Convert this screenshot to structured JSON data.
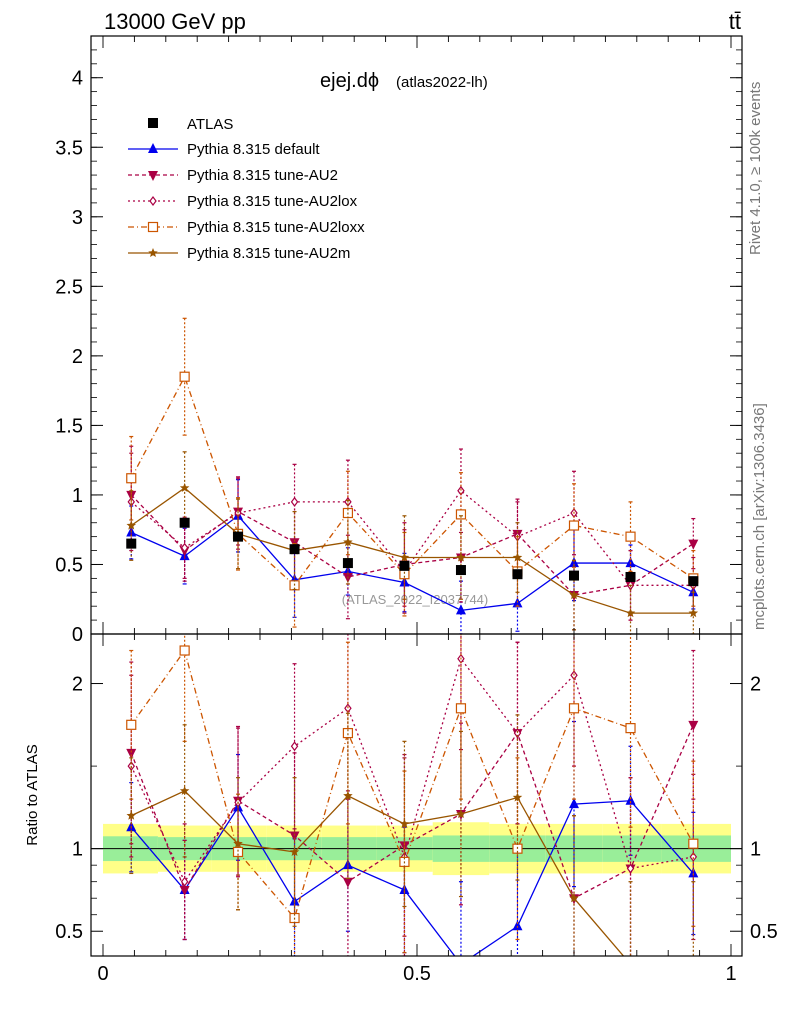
{
  "header": {
    "left": "13000 GeV pp",
    "right": "tt̄"
  },
  "side_labels": {
    "top": "Rivet 4.1.0, ≥ 100k events",
    "bottom": "mcplots.cern.ch [arXiv:1306.3436]"
  },
  "chart_data": {
    "type": "line",
    "title": "ejej.dϕ",
    "subtitle": "(atlas2022-lh)",
    "watermark": "(ATLAS_2022_I2037744)",
    "x": [
      0.045,
      0.13,
      0.215,
      0.305,
      0.39,
      0.48,
      0.57,
      0.66,
      0.75,
      0.84,
      0.94
    ],
    "xlim": [
      0,
      1
    ],
    "x_ticks": [
      "0",
      "0.5",
      "1"
    ],
    "x_tick_values": [
      0,
      0.5,
      1
    ],
    "main": {
      "ylim": [
        0,
        4.3
      ],
      "y_ticks": [
        "0",
        "0.5",
        "1",
        "1.5",
        "2",
        "2.5",
        "3",
        "3.5",
        "4"
      ],
      "y_tick_values": [
        0,
        0.5,
        1,
        1.5,
        2,
        2.5,
        3,
        3.5,
        4
      ]
    },
    "ratio": {
      "ylabel": "Ratio to ATLAS",
      "ylim": [
        0.35,
        2.3
      ],
      "y_ticks": [
        "0.5",
        "1",
        "2"
      ],
      "y_tick_values": [
        0.5,
        1,
        2
      ]
    },
    "data": {
      "name": "ATLAS",
      "values": [
        0.65,
        0.8,
        0.7,
        0.61,
        0.51,
        0.49,
        0.46,
        0.43,
        0.42,
        0.41,
        0.38
      ],
      "band_inner": [
        0.075,
        0.07,
        0.07,
        0.07,
        0.07,
        0.07,
        0.08,
        0.08,
        0.08,
        0.08,
        0.08
      ],
      "band_outer": [
        0.15,
        0.14,
        0.14,
        0.14,
        0.14,
        0.14,
        0.16,
        0.15,
        0.15,
        0.15,
        0.15
      ]
    },
    "series": [
      {
        "name": "Pythia 8.315 default",
        "color": "#0000ee",
        "dash": "",
        "marker": "triangle-up",
        "values": [
          0.73,
          0.56,
          0.85,
          0.39,
          0.45,
          0.37,
          0.17,
          0.22,
          0.51,
          0.51,
          0.3
        ],
        "errors": [
          0.19,
          0.2,
          0.26,
          0.27,
          0.17,
          0.21,
          0.21,
          0.2,
          0.27,
          0.13,
          0.12
        ],
        "ratio": [
          1.13,
          0.75,
          1.25,
          0.68,
          0.9,
          0.75,
          0.3,
          0.53,
          1.27,
          1.29,
          0.85
        ],
        "ratio_err": [
          0.27,
          0.3,
          0.32,
          0.38,
          0.4,
          0.38,
          0.5,
          0.45,
          0.5,
          0.33,
          0.37
        ]
      },
      {
        "name": "Pythia 8.315 tune-AU2",
        "color": "#aa0044",
        "dash": "4,3",
        "marker": "triangle-down",
        "values": [
          1.0,
          0.6,
          0.88,
          0.66,
          0.41,
          0.5,
          0.55,
          0.72,
          0.28,
          0.35,
          0.65
        ],
        "errors": [
          0.35,
          0.22,
          0.24,
          0.3,
          0.3,
          0.3,
          0.32,
          0.25,
          0.25,
          0.25,
          0.18
        ],
        "ratio": [
          1.58,
          0.75,
          1.29,
          1.08,
          0.8,
          1.02,
          1.21,
          1.7,
          0.7,
          0.88,
          1.75
        ],
        "ratio_err": [
          0.55,
          0.3,
          0.45,
          0.5,
          0.5,
          0.55,
          0.55,
          0.55,
          0.5,
          0.55,
          0.45
        ]
      },
      {
        "name": "Pythia 8.315 tune-AU2lox",
        "color": "#aa0044",
        "dash": "2,3",
        "marker": "diamond-open",
        "values": [
          0.95,
          0.62,
          0.87,
          0.95,
          0.95,
          0.45,
          1.03,
          0.7,
          0.87,
          0.35,
          0.35
        ],
        "errors": [
          0.35,
          0.22,
          0.26,
          0.27,
          0.3,
          0.3,
          0.3,
          0.25,
          0.3,
          0.25,
          0.2
        ],
        "ratio": [
          1.5,
          0.8,
          1.28,
          1.62,
          1.85,
          0.95,
          2.15,
          1.7,
          2.05,
          0.88,
          0.95
        ],
        "ratio_err": [
          0.55,
          0.35,
          0.45,
          0.5,
          0.5,
          0.6,
          0.55,
          0.55,
          0.55,
          0.55,
          0.5
        ]
      },
      {
        "name": "Pythia 8.315 tune-AU2loxx",
        "color": "#cc5500",
        "dash": "6,3,1,3",
        "marker": "square-open",
        "values": [
          1.12,
          1.85,
          0.72,
          0.35,
          0.87,
          0.43,
          0.86,
          0.45,
          0.78,
          0.7,
          0.4
        ],
        "errors": [
          0.3,
          0.42,
          0.26,
          0.3,
          0.3,
          0.3,
          0.3,
          0.25,
          0.3,
          0.25,
          0.2
        ],
        "ratio": [
          1.75,
          2.2,
          0.98,
          0.58,
          1.7,
          0.92,
          1.85,
          1.0,
          1.85,
          1.73,
          1.03
        ],
        "ratio_err": [
          0.45,
          0.55,
          0.35,
          0.4,
          0.55,
          0.55,
          0.55,
          0.55,
          0.55,
          0.6,
          0.5
        ]
      },
      {
        "name": "Pythia 8.315 tune-AU2m",
        "color": "#995500",
        "dash": "",
        "marker": "star",
        "values": [
          0.78,
          1.05,
          0.72,
          0.6,
          0.66,
          0.55,
          0.55,
          0.55,
          0.28,
          0.15,
          0.15
        ],
        "errors": [
          0.25,
          0.26,
          0.25,
          0.28,
          0.3,
          0.3,
          0.3,
          0.25,
          0.25,
          0.2,
          0.15
        ],
        "ratio": [
          1.2,
          1.35,
          1.03,
          0.98,
          1.32,
          1.15,
          1.21,
          1.31,
          0.7,
          0.3,
          0.3
        ],
        "ratio_err": [
          0.35,
          0.4,
          0.4,
          0.45,
          0.5,
          0.5,
          0.5,
          0.5,
          0.5,
          0.5,
          0.5
        ]
      }
    ]
  }
}
